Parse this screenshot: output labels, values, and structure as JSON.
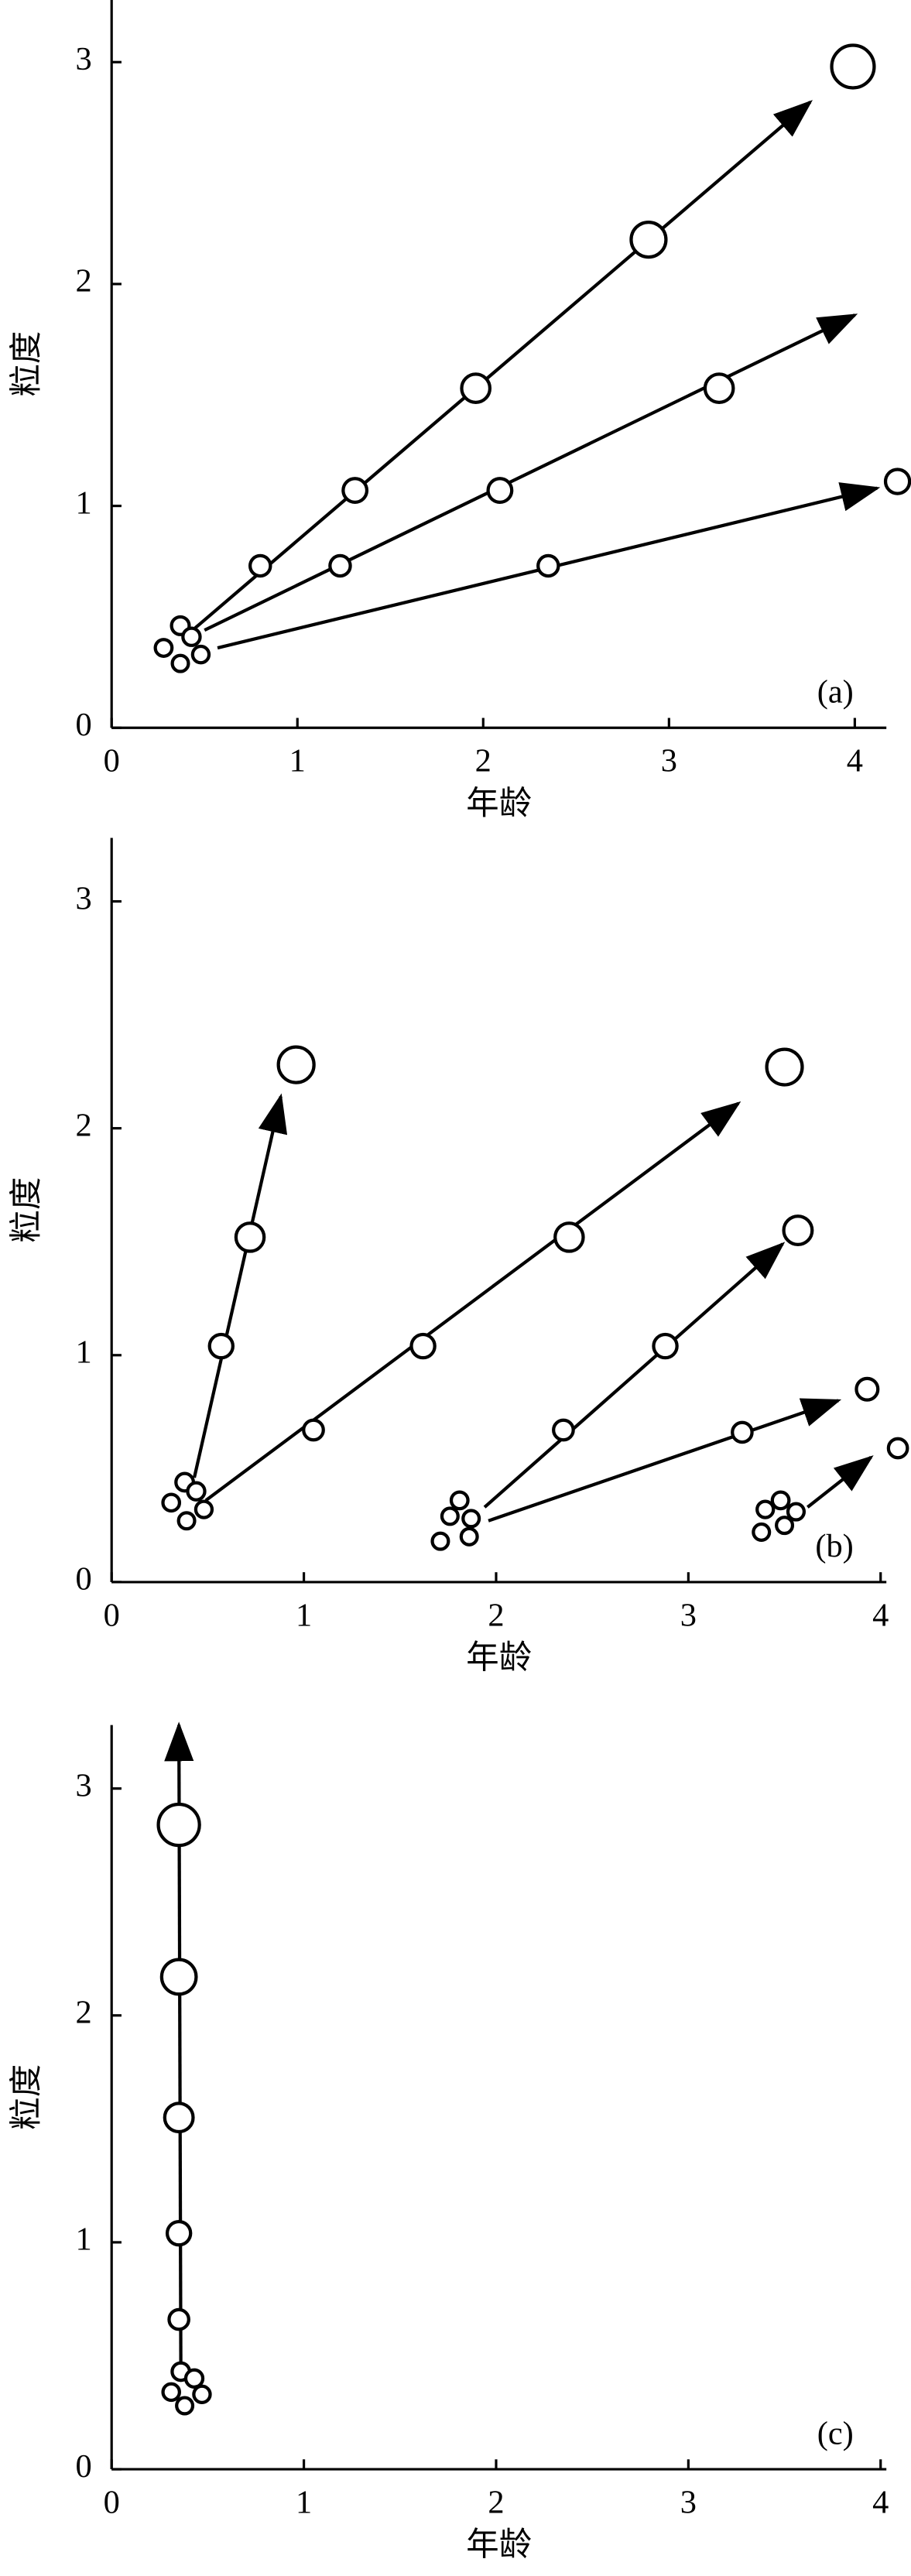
{
  "chart_data": [
    {
      "type": "line",
      "label": "(a)",
      "xlabel": "年龄",
      "ylabel": "粒度",
      "color": "#000000",
      "xlim": [
        0,
        4.17
      ],
      "ylim": [
        0,
        3.28
      ],
      "xticks": [
        0,
        1,
        2,
        3,
        4
      ],
      "yticks": [
        0,
        1,
        2,
        3
      ],
      "series": [
        {
          "x": [
            0.28,
            0.37,
            0.43,
            0.37,
            0.48
          ],
          "values": [
            0.36,
            0.46,
            0.41,
            0.29,
            0.33
          ]
        },
        {
          "x": [
            0.8,
            1.31,
            1.96,
            2.89,
            3.99
          ],
          "values": [
            0.73,
            1.07,
            1.53,
            2.2,
            2.98
          ],
          "arrow": {
            "x": [
              0.45,
              3.76
            ],
            "y": [
              0.45,
              2.82
            ]
          }
        },
        {
          "x": [
            1.23,
            2.09,
            3.27
          ],
          "values": [
            0.73,
            1.07,
            1.53
          ],
          "arrow": {
            "x": [
              0.5,
              4.0
            ],
            "y": [
              0.44,
              1.86
            ]
          }
        },
        {
          "x": [
            2.35,
            4.23
          ],
          "values": [
            0.73,
            1.11
          ],
          "arrow": {
            "x": [
              0.57,
              4.12
            ],
            "y": [
              0.36,
              1.08
            ]
          }
        }
      ]
    },
    {
      "type": "line",
      "label": "(b)",
      "xlabel": "年龄",
      "ylabel": "粒度",
      "color": "#000000",
      "xlim": [
        0,
        4.03
      ],
      "ylim": [
        0,
        3.28
      ],
      "xticks": [
        0,
        1,
        2,
        3,
        4
      ],
      "yticks": [
        0,
        1,
        2,
        3
      ],
      "series": [
        {
          "x": [
            0.31,
            0.38,
            0.44,
            0.39,
            0.48
          ],
          "values": [
            0.35,
            0.44,
            0.4,
            0.27,
            0.32
          ]
        },
        {
          "x": [
            0.57,
            0.72,
            0.96
          ],
          "values": [
            1.04,
            1.52,
            2.28
          ],
          "arrow": {
            "x": [
              0.43,
              0.88
            ],
            "y": [
              0.46,
              2.14
            ]
          }
        },
        {
          "x": [
            1.05,
            1.62,
            2.38,
            3.5
          ],
          "values": [
            0.67,
            1.04,
            1.52,
            2.27
          ],
          "arrow": {
            "x": [
              0.49,
              3.26
            ],
            "y": [
              0.36,
              2.11
            ]
          }
        },
        {
          "x": [
            1.76,
            1.81,
            1.87,
            1.71,
            1.86
          ],
          "values": [
            0.29,
            0.36,
            0.28,
            0.18,
            0.2
          ]
        },
        {
          "x": [
            2.35,
            2.88,
            3.57
          ],
          "values": [
            0.67,
            1.04,
            1.55
          ],
          "arrow": {
            "x": [
              1.94,
              3.49
            ],
            "y": [
              0.33,
              1.49
            ]
          }
        },
        {
          "x": [
            3.28,
            3.93
          ],
          "values": [
            0.66,
            0.85
          ],
          "arrow": {
            "x": [
              1.96,
              3.78
            ],
            "y": [
              0.27,
              0.8
            ]
          }
        },
        {
          "x": [
            3.4,
            3.48,
            3.56,
            3.38,
            3.5
          ],
          "values": [
            0.32,
            0.36,
            0.31,
            0.22,
            0.25
          ]
        },
        {
          "x": [
            4.09
          ],
          "values": [
            0.59
          ],
          "arrow": {
            "x": [
              3.62,
              3.95
            ],
            "y": [
              0.33,
              0.55
            ]
          }
        }
      ]
    },
    {
      "type": "line",
      "label": "(c)",
      "xlabel": "年龄",
      "ylabel": "粒度",
      "color": "#000000",
      "xlim": [
        0,
        4.03
      ],
      "ylim": [
        0,
        3.28
      ],
      "xticks": [
        0,
        1,
        2,
        3,
        4
      ],
      "yticks": [
        0,
        1,
        2,
        3
      ],
      "series": [
        {
          "x": [
            0.31,
            0.36,
            0.43,
            0.38,
            0.47
          ],
          "values": [
            0.34,
            0.43,
            0.4,
            0.28,
            0.33
          ]
        },
        {
          "x": [
            0.35,
            0.35,
            0.35,
            0.35,
            0.35
          ],
          "values": [
            0.66,
            1.04,
            1.55,
            2.17,
            2.84
          ],
          "arrow": {
            "x": [
              0.36,
              0.35
            ],
            "y": [
              0.46,
              3.28
            ]
          }
        }
      ]
    }
  ]
}
